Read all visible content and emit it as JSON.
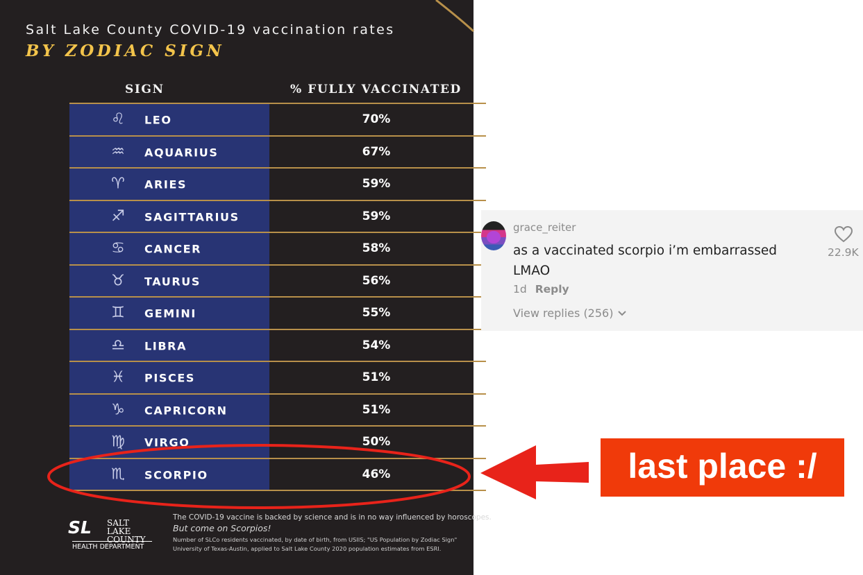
{
  "infographic": {
    "title": "Salt Lake County COVID-19 vaccination rates",
    "subtitle": "BY ZODIAC SIGN",
    "columns": [
      "SIGN",
      "% FULLY VACCINATED"
    ],
    "rows": [
      {
        "glyph": "♌",
        "sign": "LEO",
        "pct": "70%"
      },
      {
        "glyph": "♒",
        "sign": "AQUARIUS",
        "pct": "67%"
      },
      {
        "glyph": "♈",
        "sign": "ARIES",
        "pct": "59%"
      },
      {
        "glyph": "♐",
        "sign": "SAGITTARIUS",
        "pct": "59%"
      },
      {
        "glyph": "♋",
        "sign": "CANCER",
        "pct": "58%"
      },
      {
        "glyph": "♉",
        "sign": "TAURUS",
        "pct": "56%"
      },
      {
        "glyph": "♊",
        "sign": "GEMINI",
        "pct": "55%"
      },
      {
        "glyph": "♎",
        "sign": "LIBRA",
        "pct": "54%"
      },
      {
        "glyph": "♓",
        "sign": "PISCES",
        "pct": "51%"
      },
      {
        "glyph": "♑",
        "sign": "CAPRICORN",
        "pct": "51%"
      },
      {
        "glyph": "♍",
        "sign": "VIRGO",
        "pct": "50%"
      },
      {
        "glyph": "♏",
        "sign": "SCORPIO",
        "pct": "46%"
      }
    ],
    "footer": {
      "logo_sl": "SL",
      "logo_county": "SALT LAKE COUNTY",
      "logo_dept": "HEALTH DEPARTMENT",
      "line1": "The COVID-19 vaccine is backed by science and is in no way influenced by horoscopes.",
      "line2": "But come on Scorpios!",
      "line3": "Number of SLCo residents vaccinated, by date of birth, from USIIS; \"US Population by Zodiac Sign\"",
      "line4": "University of Texas-Austin, applied to Salt Lake County 2020 population estimates from ESRI."
    },
    "colors": {
      "background": "#231f20",
      "sign_column": "#283474",
      "gold": "#f3c44b",
      "rule": "#b8904a"
    }
  },
  "chart_data": {
    "type": "table",
    "title": "Salt Lake County COVID-19 vaccination rates",
    "subtitle": "BY ZODIAC SIGN",
    "columns": [
      "SIGN",
      "% FULLY VACCINATED"
    ],
    "categories": [
      "LEO",
      "AQUARIUS",
      "ARIES",
      "SAGITTARIUS",
      "CANCER",
      "TAURUS",
      "GEMINI",
      "LIBRA",
      "PISCES",
      "CAPRICORN",
      "VIRGO",
      "SCORPIO"
    ],
    "values": [
      70,
      67,
      59,
      59,
      58,
      56,
      55,
      54,
      51,
      51,
      50,
      46
    ],
    "highlighted": "SCORPIO"
  },
  "comment": {
    "username": "grace_reiter",
    "text": "as a vaccinated scorpio i’m embarrassed LMAO",
    "age": "1d",
    "reply_label": "Reply",
    "view_replies": "View replies (256)",
    "likes": "22.9K",
    "icons": {
      "like": "heart-outline-icon",
      "expand": "chevron-down-icon"
    }
  },
  "annotation": {
    "label": "last place :/",
    "color": "#f03a0a"
  }
}
